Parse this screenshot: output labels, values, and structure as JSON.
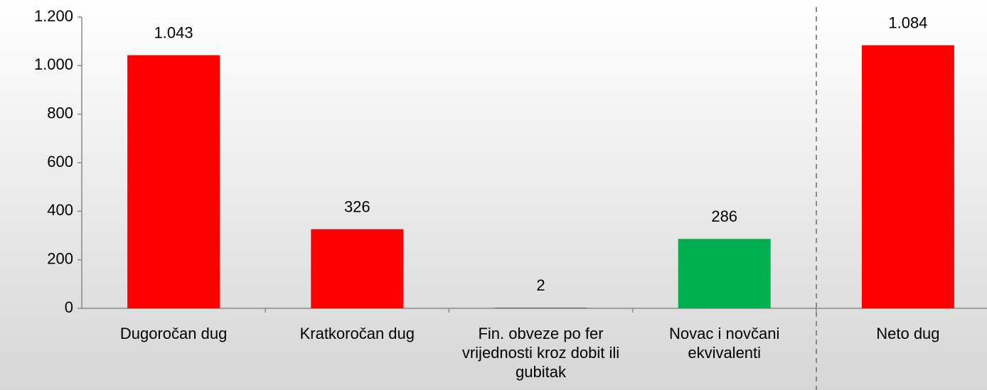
{
  "chart_data": {
    "type": "bar",
    "categories": [
      "Dugoročan dug",
      "Kratkoročan dug",
      "Fin. obveze po fer vrijednosti kroz dobit ili gubitak",
      "Novac i novčani ekvivalenti",
      "Neto dug"
    ],
    "values": [
      1043,
      326,
      2,
      286,
      1084
    ],
    "value_labels": [
      "1.043",
      "326",
      "2",
      "286",
      "1.084"
    ],
    "colors": [
      "#ff0000",
      "#ff0000",
      "#ff0000",
      "#00b050",
      "#ff0000"
    ],
    "ylim": [
      0,
      1200
    ],
    "yticks": [
      0,
      200,
      400,
      600,
      800,
      {
        "value": 1000,
        "label": "1.000"
      },
      {
        "value": 1200,
        "label": "1.200"
      }
    ],
    "grid": false
  }
}
